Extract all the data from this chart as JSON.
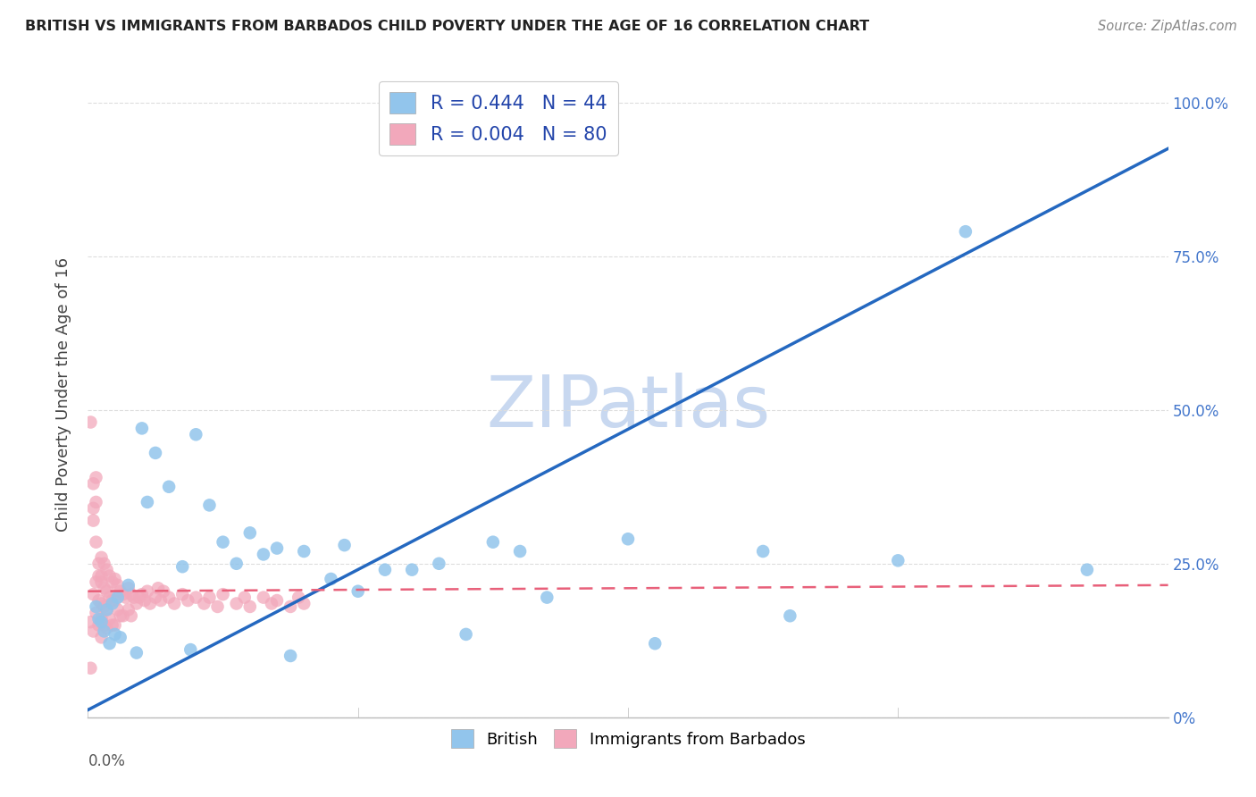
{
  "title": "BRITISH VS IMMIGRANTS FROM BARBADOS CHILD POVERTY UNDER THE AGE OF 16 CORRELATION CHART",
  "source": "Source: ZipAtlas.com",
  "ylabel": "Child Poverty Under the Age of 16",
  "xmin": 0.0,
  "xmax": 0.4,
  "ymin": 0.0,
  "ymax": 1.05,
  "yticks": [
    0.0,
    0.25,
    0.5,
    0.75,
    1.0
  ],
  "ytick_labels_right": [
    "0%",
    "25.0%",
    "50.0%",
    "75.0%",
    "100.0%"
  ],
  "xtick_left_label": "0.0%",
  "british_R": 0.444,
  "british_N": 44,
  "barbados_R": 0.004,
  "barbados_N": 80,
  "british_color": "#92C5EC",
  "barbados_color": "#F2A8BB",
  "trend_blue": "#2468C0",
  "trend_pink": "#E8607A",
  "watermark": "ZIPatlas",
  "watermark_color": "#C8D8F0",
  "legend_label_british": "British",
  "legend_label_barbados": "Immigrants from Barbados",
  "british_x": [
    0.003,
    0.004,
    0.005,
    0.006,
    0.007,
    0.008,
    0.009,
    0.01,
    0.011,
    0.012,
    0.015,
    0.018,
    0.02,
    0.022,
    0.025,
    0.03,
    0.035,
    0.038,
    0.04,
    0.045,
    0.05,
    0.055,
    0.06,
    0.065,
    0.07,
    0.075,
    0.08,
    0.09,
    0.095,
    0.1,
    0.11,
    0.12,
    0.13,
    0.14,
    0.15,
    0.16,
    0.17,
    0.2,
    0.21,
    0.25,
    0.26,
    0.3,
    0.325,
    0.37
  ],
  "british_y": [
    0.18,
    0.16,
    0.155,
    0.14,
    0.175,
    0.12,
    0.185,
    0.135,
    0.195,
    0.13,
    0.215,
    0.105,
    0.47,
    0.35,
    0.43,
    0.375,
    0.245,
    0.11,
    0.46,
    0.345,
    0.285,
    0.25,
    0.3,
    0.265,
    0.275,
    0.1,
    0.27,
    0.225,
    0.28,
    0.205,
    0.24,
    0.24,
    0.25,
    0.135,
    0.285,
    0.27,
    0.195,
    0.29,
    0.12,
    0.27,
    0.165,
    0.255,
    0.79,
    0.24
  ],
  "barbados_x": [
    0.001,
    0.001,
    0.001,
    0.002,
    0.002,
    0.002,
    0.002,
    0.003,
    0.003,
    0.003,
    0.003,
    0.004,
    0.004,
    0.004,
    0.005,
    0.005,
    0.005,
    0.005,
    0.005,
    0.006,
    0.006,
    0.006,
    0.006,
    0.007,
    0.007,
    0.007,
    0.007,
    0.008,
    0.008,
    0.008,
    0.009,
    0.009,
    0.009,
    0.01,
    0.01,
    0.01,
    0.011,
    0.011,
    0.012,
    0.012,
    0.013,
    0.013,
    0.014,
    0.015,
    0.015,
    0.016,
    0.016,
    0.017,
    0.018,
    0.019,
    0.02,
    0.021,
    0.022,
    0.023,
    0.025,
    0.026,
    0.027,
    0.028,
    0.03,
    0.032,
    0.035,
    0.037,
    0.04,
    0.043,
    0.045,
    0.048,
    0.05,
    0.055,
    0.058,
    0.06,
    0.065,
    0.068,
    0.07,
    0.075,
    0.078,
    0.08,
    0.002,
    0.003,
    0.004,
    0.005
  ],
  "barbados_y": [
    0.48,
    0.155,
    0.08,
    0.38,
    0.34,
    0.2,
    0.14,
    0.39,
    0.35,
    0.22,
    0.17,
    0.23,
    0.19,
    0.15,
    0.26,
    0.22,
    0.185,
    0.16,
    0.13,
    0.25,
    0.21,
    0.18,
    0.15,
    0.24,
    0.205,
    0.175,
    0.145,
    0.23,
    0.195,
    0.16,
    0.22,
    0.19,
    0.15,
    0.225,
    0.19,
    0.15,
    0.215,
    0.175,
    0.205,
    0.165,
    0.2,
    0.165,
    0.195,
    0.21,
    0.175,
    0.2,
    0.165,
    0.195,
    0.185,
    0.195,
    0.2,
    0.19,
    0.205,
    0.185,
    0.195,
    0.21,
    0.19,
    0.205,
    0.195,
    0.185,
    0.2,
    0.19,
    0.195,
    0.185,
    0.195,
    0.18,
    0.2,
    0.185,
    0.195,
    0.18,
    0.195,
    0.185,
    0.19,
    0.18,
    0.195,
    0.185,
    0.32,
    0.285,
    0.25,
    0.23
  ],
  "british_trendline_x": [
    0.0,
    0.4
  ],
  "british_trendline_y": [
    0.012,
    0.925
  ],
  "barbados_trendline_x": [
    0.0,
    0.4
  ],
  "barbados_trendline_y": [
    0.205,
    0.215
  ],
  "grid_color": "#DDDDDD",
  "spine_color": "#BBBBBB"
}
